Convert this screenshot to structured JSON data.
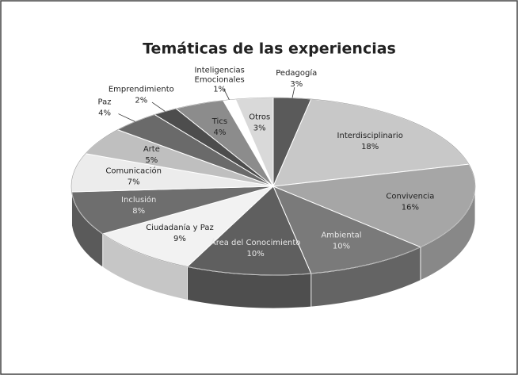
{
  "chart_data": {
    "type": "pie3d",
    "title": "Temáticas de las experiencias",
    "categories": [
      "Pedagogía",
      "Interdisciplinario",
      "Convivencia",
      "Ambiental",
      "Área del Conocimiento",
      "Ciudadanía y Paz",
      "Inclusión",
      "Comunicación",
      "Arte",
      "Paz",
      "Emprendimiento",
      "Tics",
      "Inteligencias Emocionales",
      "Otros"
    ],
    "values": [
      3,
      18,
      16,
      10,
      10,
      9,
      8,
      7,
      5,
      4,
      2,
      4,
      1,
      3
    ],
    "value_labels": [
      "3%",
      "18%",
      "16%",
      "10%",
      "10%",
      "9%",
      "8%",
      "7%",
      "5%",
      "4%",
      "2%",
      "4%",
      "1%",
      "3%"
    ],
    "colors": [
      "#5a5a5a",
      "#c8c8c8",
      "#a6a6a6",
      "#7a7a7a",
      "#5f5f5f",
      "#f2f2f2",
      "#6e6e6e",
      "#ececec",
      "#bfbfbf",
      "#6a6a6a",
      "#4d4d4d",
      "#8c8c8c",
      "#ffffff",
      "#d9d9d9"
    ]
  }
}
